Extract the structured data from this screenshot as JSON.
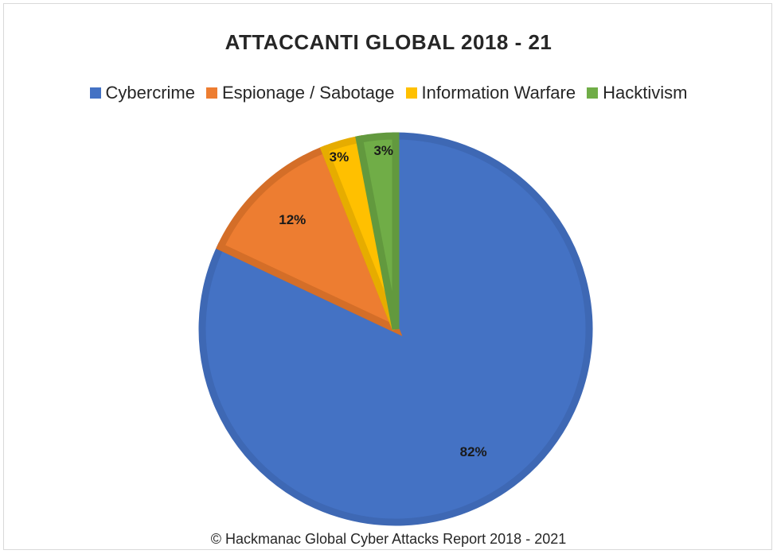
{
  "chart_data": {
    "type": "pie",
    "title": "ATTACCANTI GLOBAL 2018 - 21",
    "legend_position": "top",
    "categories": [
      "Cybercrime",
      "Espionage / Sabotage",
      "Information Warfare",
      "Hacktivism"
    ],
    "values": [
      82,
      12,
      3,
      3
    ],
    "labels": [
      "82%",
      "12%",
      "3%",
      "3%"
    ],
    "colors": [
      "#4472C4",
      "#ED7D31",
      "#FFC000",
      "#70AD47"
    ],
    "edge_colors": [
      "#3E68B4",
      "#D46E28",
      "#E6AC00",
      "#62993E"
    ]
  },
  "footer": "© Hackmanac Global Cyber Attacks Report 2018 - 2021"
}
